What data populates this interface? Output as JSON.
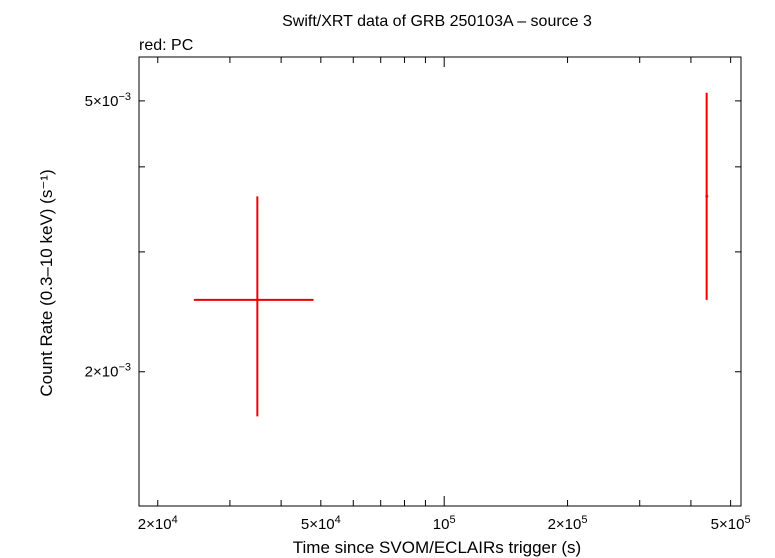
{
  "chart_data": {
    "type": "scatter",
    "title": "Swift/XRT data of GRB 250103A – source 3",
    "subtitle": "red: PC",
    "xlabel": "Time since SVOM/ECLAIRs trigger (s)",
    "ylabel": "Count Rate (0.3–10 keV) (s⁻¹)",
    "xscale": "log",
    "yscale": "log",
    "xlim": [
      18000,
      530000
    ],
    "ylim": [
      0.00127,
      0.0058
    ],
    "grid": false,
    "x_ticks": [
      {
        "value": 20000,
        "mant": "2×10",
        "exp": "4"
      },
      {
        "value": 50000,
        "mant": "5×10",
        "exp": "4"
      },
      {
        "value": 100000,
        "mant": "10",
        "exp": "5"
      },
      {
        "value": 200000,
        "mant": "2×10",
        "exp": "5"
      },
      {
        "value": 500000,
        "mant": "5×10",
        "exp": "5"
      }
    ],
    "y_ticks": [
      {
        "value": 0.002,
        "mant": "2×10",
        "exp": "−3"
      },
      {
        "value": 0.005,
        "mant": "5×10",
        "exp": "−3"
      }
    ],
    "series": [
      {
        "color": "#ee0000",
        "points": [
          {
            "x": 35000,
            "xmin": 24500,
            "xmax": 48000,
            "y": 0.00255,
            "ymin": 0.00172,
            "ymax": 0.00362
          },
          {
            "x": 437000,
            "xmin": 434000,
            "xmax": 441000,
            "y": 0.00362,
            "ymin": 0.00255,
            "ymax": 0.00514
          }
        ]
      }
    ]
  }
}
